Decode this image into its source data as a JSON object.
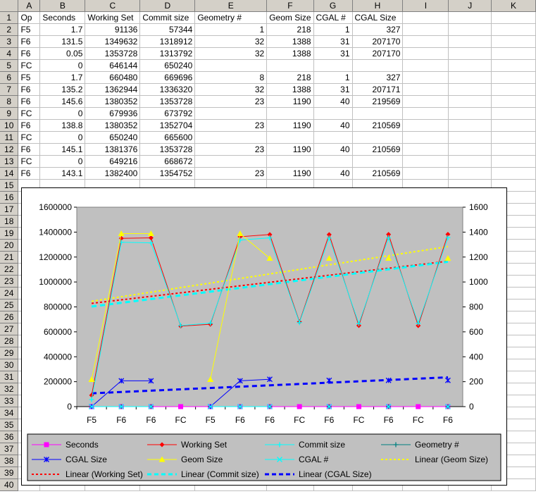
{
  "columns": [
    "A",
    "B",
    "C",
    "D",
    "E",
    "F",
    "G",
    "H",
    "I",
    "J",
    "K"
  ],
  "rows": [
    [
      "Op",
      "Seconds",
      "Working Set",
      "Commit size",
      "Geometry #",
      "Geom Size",
      "CGAL #",
      "CGAL Size",
      "",
      "",
      ""
    ],
    [
      "F5",
      "1.7",
      "91136",
      "57344",
      "1",
      "218",
      "1",
      "327",
      "",
      "",
      ""
    ],
    [
      "F6",
      "131.5",
      "1349632",
      "1318912",
      "32",
      "1388",
      "31",
      "207170",
      "",
      "",
      ""
    ],
    [
      "F6",
      "0.05",
      "1353728",
      "1313792",
      "32",
      "1388",
      "31",
      "207170",
      "",
      "",
      ""
    ],
    [
      "FC",
      "0",
      "646144",
      "650240",
      "",
      "",
      "",
      "",
      "",
      "",
      ""
    ],
    [
      "F5",
      "1.7",
      "660480",
      "669696",
      "8",
      "218",
      "1",
      "327",
      "",
      "",
      ""
    ],
    [
      "F6",
      "135.2",
      "1362944",
      "1336320",
      "32",
      "1388",
      "31",
      "207171",
      "",
      "",
      ""
    ],
    [
      "F6",
      "145.6",
      "1380352",
      "1353728",
      "23",
      "1190",
      "40",
      "219569",
      "",
      "",
      ""
    ],
    [
      "FC",
      "0",
      "679936",
      "673792",
      "",
      "",
      "",
      "",
      "",
      "",
      ""
    ],
    [
      "F6",
      "138.8",
      "1380352",
      "1352704",
      "23",
      "1190",
      "40",
      "210569",
      "",
      "",
      ""
    ],
    [
      "FC",
      "0",
      "650240",
      "665600",
      "",
      "",
      "",
      "",
      "",
      "",
      ""
    ],
    [
      "F6",
      "145.1",
      "1381376",
      "1353728",
      "23",
      "1190",
      "40",
      "210569",
      "",
      "",
      ""
    ],
    [
      "FC",
      "0",
      "649216",
      "668672",
      "",
      "",
      "",
      "",
      "",
      "",
      ""
    ],
    [
      "F6",
      "143.1",
      "1382400",
      "1354752",
      "23",
      "1190",
      "40",
      "210569",
      "",
      "",
      ""
    ],
    [
      "",
      "",
      "",
      "",
      "",
      "",
      "",
      "",
      "",
      "",
      ""
    ],
    [
      "",
      "",
      "",
      "",
      "",
      "",
      "",
      "",
      "",
      "",
      ""
    ],
    [
      "",
      "",
      "",
      "",
      "",
      "",
      "",
      "",
      "",
      "",
      ""
    ],
    [
      "",
      "",
      "",
      "",
      "",
      "",
      "",
      "",
      "",
      "",
      ""
    ],
    [
      "",
      "",
      "",
      "",
      "",
      "",
      "",
      "",
      "",
      "",
      ""
    ],
    [
      "",
      "",
      "",
      "",
      "",
      "",
      "",
      "",
      "",
      "",
      ""
    ],
    [
      "",
      "",
      "",
      "",
      "",
      "",
      "",
      "",
      "",
      "",
      ""
    ],
    [
      "",
      "",
      "",
      "",
      "",
      "",
      "",
      "",
      "",
      "",
      ""
    ],
    [
      "",
      "",
      "",
      "",
      "",
      "",
      "",
      "",
      "",
      "",
      ""
    ],
    [
      "",
      "",
      "",
      "",
      "",
      "",
      "",
      "",
      "",
      "",
      ""
    ],
    [
      "",
      "",
      "",
      "",
      "",
      "",
      "",
      "",
      "",
      "",
      ""
    ],
    [
      "",
      "",
      "",
      "",
      "",
      "",
      "",
      "",
      "",
      "",
      ""
    ],
    [
      "",
      "",
      "",
      "",
      "",
      "",
      "",
      "",
      "",
      "",
      ""
    ],
    [
      "",
      "",
      "",
      "",
      "",
      "",
      "",
      "",
      "",
      "",
      ""
    ],
    [
      "",
      "",
      "",
      "",
      "",
      "",
      "",
      "",
      "",
      "",
      ""
    ],
    [
      "",
      "",
      "",
      "",
      "",
      "",
      "",
      "",
      "",
      "",
      ""
    ],
    [
      "",
      "",
      "",
      "",
      "",
      "",
      "",
      "",
      "",
      "",
      ""
    ],
    [
      "",
      "",
      "",
      "",
      "",
      "",
      "",
      "",
      "",
      "",
      ""
    ],
    [
      "",
      "",
      "",
      "",
      "",
      "",
      "",
      "",
      "",
      "",
      ""
    ],
    [
      "",
      "",
      "",
      "",
      "",
      "",
      "",
      "",
      "",
      "",
      ""
    ],
    [
      "",
      "",
      "",
      "",
      "",
      "",
      "",
      "",
      "",
      "",
      ""
    ],
    [
      "",
      "",
      "",
      "",
      "",
      "",
      "",
      "",
      "",
      "",
      ""
    ],
    [
      "",
      "",
      "",
      "",
      "",
      "",
      "",
      "",
      "",
      "",
      ""
    ],
    [
      "",
      "",
      "",
      "",
      "",
      "",
      "",
      "",
      "",
      "",
      ""
    ],
    [
      "",
      "",
      "",
      "",
      "",
      "",
      "",
      "",
      "",
      "",
      ""
    ],
    [
      "",
      "",
      "",
      "",
      "",
      "",
      "",
      "",
      "",
      "",
      ""
    ]
  ],
  "chart_data": {
    "type": "line",
    "categories": [
      "F5",
      "F6",
      "F6",
      "FC",
      "F5",
      "F6",
      "F6",
      "FC",
      "F6",
      "FC",
      "F6",
      "FC",
      "F6"
    ],
    "y_primary": {
      "ticks": [
        "0",
        "200000",
        "400000",
        "600000",
        "800000",
        "1000000",
        "1200000",
        "1400000",
        "1600000"
      ],
      "ylim": [
        0,
        1600000
      ]
    },
    "y_secondary": {
      "ticks": [
        "0",
        "200",
        "400",
        "600",
        "800",
        "1000",
        "1200",
        "1400",
        "1600"
      ],
      "ylim": [
        0,
        1600
      ]
    },
    "plot_background": "#c0c0c0",
    "series": [
      {
        "name": "Seconds",
        "axis": "primary",
        "color": "#ff00ff",
        "marker": "square",
        "values": [
          1.7,
          131.5,
          0.05,
          0,
          1.7,
          135.2,
          145.6,
          0,
          138.8,
          0,
          145.1,
          0,
          143.1
        ]
      },
      {
        "name": "Working Set",
        "axis": "primary",
        "color": "#ff0000",
        "marker": "diamond",
        "values": [
          91136,
          1349632,
          1353728,
          646144,
          660480,
          1362944,
          1380352,
          679936,
          1380352,
          650240,
          1381376,
          649216,
          1382400
        ]
      },
      {
        "name": "Commit size",
        "axis": "primary",
        "color": "#00ffff",
        "marker": "plus",
        "values": [
          57344,
          1318912,
          1313792,
          650240,
          669696,
          1336320,
          1353728,
          673792,
          1352704,
          665600,
          1353728,
          668672,
          1354752
        ]
      },
      {
        "name": "Geometry #",
        "axis": "primary",
        "color": "#008080",
        "marker": "plus",
        "values": [
          1,
          32,
          32,
          null,
          8,
          32,
          23,
          null,
          23,
          null,
          23,
          null,
          23
        ]
      },
      {
        "name": "CGAL Size",
        "axis": "primary",
        "color": "#0000ff",
        "marker": "star",
        "values": [
          327,
          207170,
          207170,
          null,
          327,
          207171,
          219569,
          null,
          210569,
          null,
          210569,
          null,
          210569
        ]
      },
      {
        "name": "Geom Size",
        "axis": "secondary",
        "color": "#ffff00",
        "marker": "triangle",
        "values": [
          218,
          1388,
          1388,
          null,
          218,
          1388,
          1190,
          null,
          1190,
          null,
          1190,
          null,
          1190
        ]
      },
      {
        "name": "CGAL #",
        "axis": "primary",
        "color": "#00ffff",
        "marker": "x",
        "values": [
          1,
          31,
          31,
          null,
          1,
          31,
          40,
          null,
          40,
          null,
          40,
          null,
          40
        ]
      }
    ],
    "trendlines": [
      {
        "name": "Linear (Geom Size)",
        "of": "Geom Size",
        "color": "#ffff00",
        "style": "dotted"
      },
      {
        "name": "Linear (Working Set)",
        "of": "Working Set",
        "color": "#ff0000",
        "style": "dotted"
      },
      {
        "name": "Linear (Commit size)",
        "of": "Commit size",
        "color": "#00ffff",
        "style": "dashed"
      },
      {
        "name": "Linear (CGAL Size)",
        "of": "CGAL Size",
        "color": "#0000ff",
        "style": "dashed"
      }
    ],
    "legend": {
      "placement": "bottom",
      "items": [
        "Seconds",
        "Working Set",
        "Commit size",
        "Geometry #",
        "CGAL Size",
        "Geom Size",
        "CGAL #",
        "Linear (Geom Size)",
        "Linear (Working Set)",
        "Linear (Commit size)",
        "Linear (CGAL Size)"
      ]
    }
  }
}
